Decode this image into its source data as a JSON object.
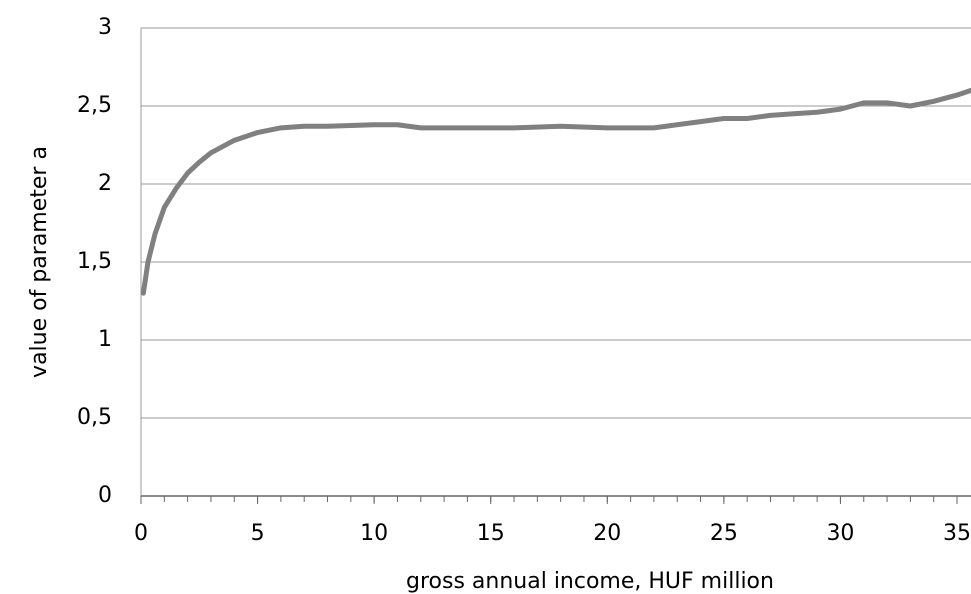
{
  "chart_data": {
    "type": "line",
    "xlabel": "gross annual income,  HUF million",
    "ylabel": "value of parameter a",
    "x": [
      0.1,
      0.3,
      0.6,
      1,
      1.5,
      2,
      2.5,
      3,
      4,
      5,
      6,
      7,
      8,
      10,
      11,
      12,
      14,
      16,
      18,
      20,
      22,
      24,
      25,
      26,
      27,
      28,
      29,
      30,
      31,
      32,
      33,
      34,
      35,
      35.6
    ],
    "series": [
      {
        "color": "#808080",
        "values": [
          1.3,
          1.5,
          1.68,
          1.85,
          1.97,
          2.07,
          2.14,
          2.2,
          2.28,
          2.33,
          2.36,
          2.37,
          2.37,
          2.38,
          2.38,
          2.36,
          2.36,
          2.36,
          2.37,
          2.36,
          2.36,
          2.4,
          2.42,
          2.42,
          2.44,
          2.45,
          2.46,
          2.48,
          2.52,
          2.52,
          2.5,
          2.53,
          2.57,
          2.6
        ]
      }
    ],
    "xlim": [
      0,
      35.6
    ],
    "ylim": [
      0,
      3
    ],
    "xticks": [
      0,
      5,
      10,
      15,
      20,
      25,
      30,
      35
    ],
    "xminorticks": [
      0,
      1,
      2,
      3,
      4,
      5,
      6,
      7,
      8,
      9,
      10,
      11,
      12,
      13,
      14,
      15,
      16,
      17,
      18,
      19,
      20,
      21,
      22,
      23,
      24,
      25,
      26,
      27,
      28,
      29,
      30,
      31,
      32,
      33,
      34,
      35
    ],
    "yticks": [
      0,
      {
        "value": 0.5,
        "label": "0,5"
      },
      1,
      {
        "value": 1.5,
        "label": "1,5"
      },
      2,
      {
        "value": 2.5,
        "label": "2,5"
      },
      3
    ],
    "grid": true
  }
}
